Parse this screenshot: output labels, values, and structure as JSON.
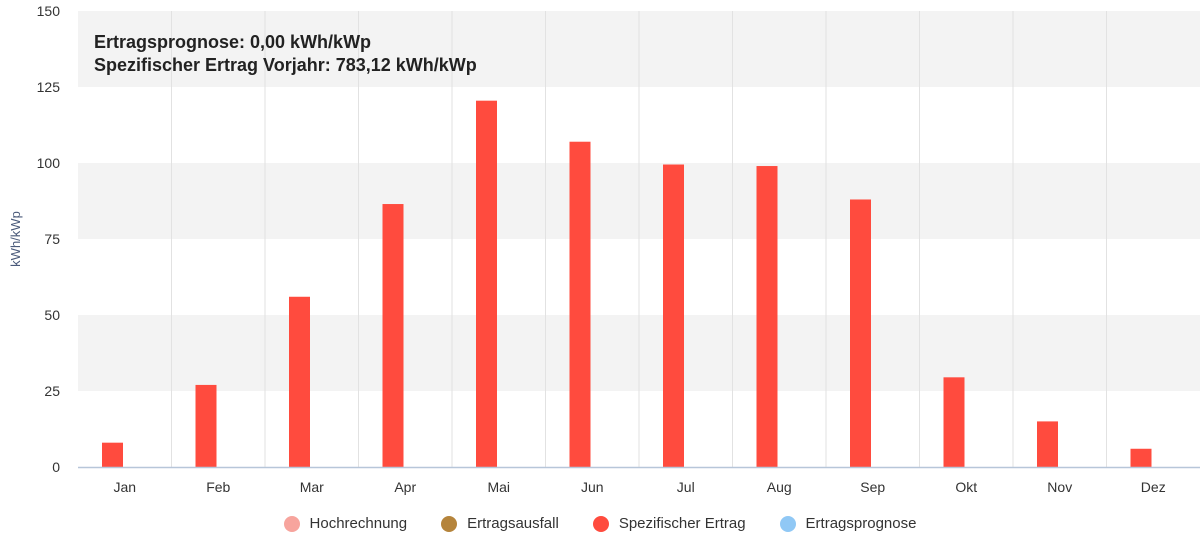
{
  "info": {
    "line1": "Ertragsprognose: 0,00 kWh/kWp",
    "line2": "Spezifischer Ertrag Vorjahr: 783,12 kWh/kWp"
  },
  "chart_data": {
    "type": "bar",
    "title": "",
    "xlabel": "",
    "ylabel": "kWh/kWp",
    "ylim": [
      0,
      150
    ],
    "yticks": [
      0,
      25,
      50,
      75,
      100,
      125,
      150
    ],
    "categories": [
      "Jan",
      "Feb",
      "Mar",
      "Apr",
      "Mai",
      "Jun",
      "Jul",
      "Aug",
      "Sep",
      "Okt",
      "Nov",
      "Dez"
    ],
    "series": [
      {
        "name": "Spezifischer Ertrag",
        "color": "#ff4b3e",
        "values": [
          8,
          27,
          56,
          86.5,
          120.5,
          107,
          99.5,
          99,
          88,
          29.5,
          15,
          6
        ]
      }
    ],
    "grid": true,
    "legend": {
      "placement": "bottom",
      "items": [
        {
          "label": "Hochrechnung",
          "color": "#f7a49d"
        },
        {
          "label": "Ertragsausfall",
          "color": "#b5843b"
        },
        {
          "label": "Spezifischer Ertrag",
          "color": "#ff4b3e"
        },
        {
          "label": "Ertragsprognose",
          "color": "#90c8f5"
        }
      ]
    }
  }
}
